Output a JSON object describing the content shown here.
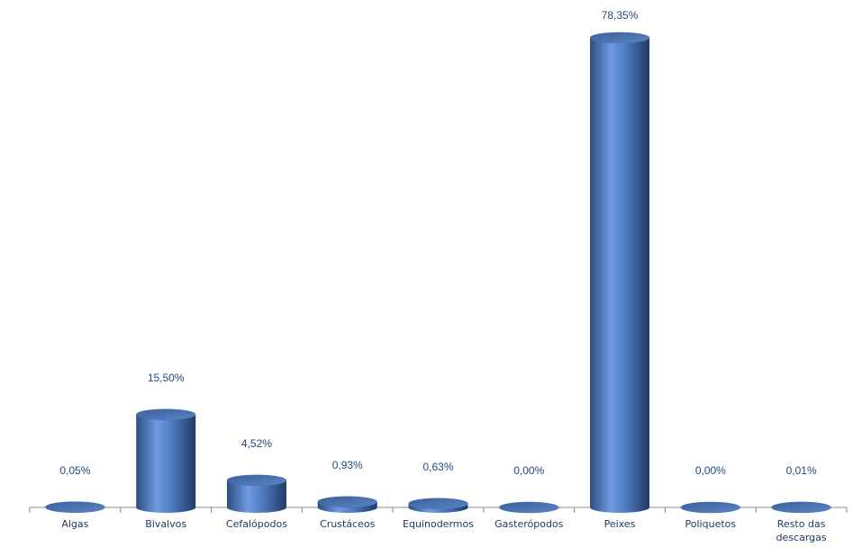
{
  "chart_data": {
    "type": "bar",
    "categories": [
      "Algas",
      "Bivalvos",
      "Cefalópodos",
      "Crustáceos",
      "Equinodermos",
      "Gasterópodos",
      "Peixes",
      "Poliquetos",
      "Resto das descargas"
    ],
    "values": [
      0.05,
      15.5,
      4.52,
      0.93,
      0.63,
      0.0,
      78.35,
      0.0,
      0.01
    ],
    "value_labels": [
      "0,05%",
      "15,50%",
      "4,52%",
      "0,93%",
      "0,63%",
      "0,00%",
      "78,35%",
      "0,00%",
      "0,01%"
    ],
    "color": "#4f81bd"
  }
}
